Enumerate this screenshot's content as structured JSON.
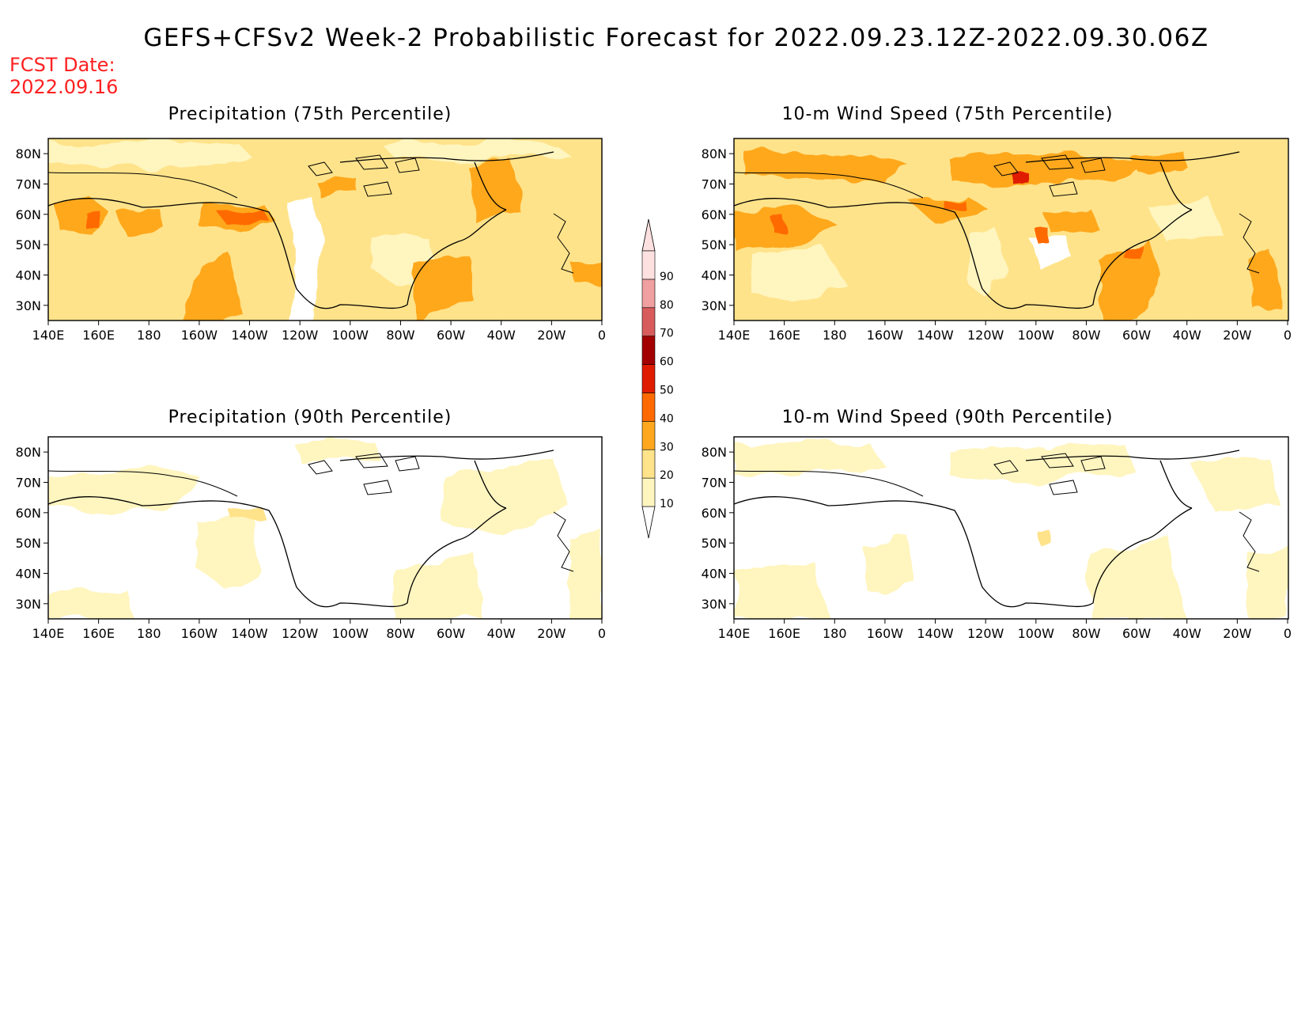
{
  "header": {
    "title": "GEFS+CFSv2 Week-2 Probabilistic Forecast for 2022.09.23.12Z-2022.09.30.06Z",
    "fcst_label": "FCST Date:",
    "fcst_date": "2022.09.16"
  },
  "panels": [
    {
      "title": "Precipitation (75th Percentile)",
      "level": "high"
    },
    {
      "title": "10-m Wind Speed (75th Percentile)",
      "level": "high"
    },
    {
      "title": "Precipitation (90th Percentile)",
      "level": "low"
    },
    {
      "title": "10-m Wind Speed (90th Percentile)",
      "level": "low"
    }
  ],
  "axes": {
    "lon_labels": [
      "140E",
      "160E",
      "180",
      "160W",
      "140W",
      "120W",
      "100W",
      "80W",
      "60W",
      "40W",
      "20W",
      "0"
    ],
    "lat_labels": [
      "80N",
      "70N",
      "60N",
      "50N",
      "40N",
      "30N"
    ]
  },
  "colorbar": {
    "levels": [
      "10",
      "20",
      "30",
      "40",
      "50",
      "60",
      "70",
      "80",
      "90"
    ],
    "colors": [
      "#fff5bf",
      "#ffe38a",
      "#ffa81f",
      "#ff6a00",
      "#e01c00",
      "#a30000",
      "#d95c5c",
      "#f0a0a0",
      "#fde0e0"
    ]
  }
}
